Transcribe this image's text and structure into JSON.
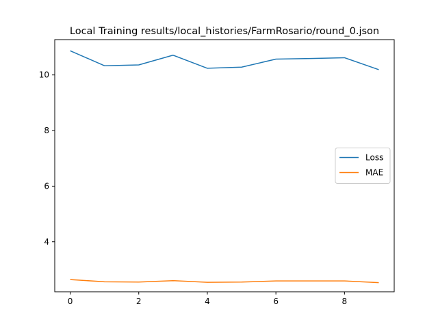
{
  "chart_data": {
    "type": "line",
    "title": "Local Training results/local_histories/FarmRosario/round_0.json",
    "xlabel": "",
    "ylabel": "",
    "x": [
      0,
      1,
      2,
      3,
      4,
      5,
      6,
      7,
      8,
      9
    ],
    "xlim": [
      -0.45,
      9.45
    ],
    "ylim": [
      2.2,
      11.27
    ],
    "xticks": [
      0,
      2,
      4,
      6,
      8
    ],
    "yticks": [
      4,
      6,
      8,
      10
    ],
    "grid": false,
    "legend_position": "center-right",
    "series": [
      {
        "name": "Loss",
        "color": "#1f77b4",
        "values": [
          10.87,
          10.33,
          10.36,
          10.71,
          10.24,
          10.28,
          10.57,
          10.59,
          10.62,
          10.19
        ]
      },
      {
        "name": "MAE",
        "color": "#ff7f0e",
        "values": [
          2.64,
          2.56,
          2.55,
          2.6,
          2.54,
          2.55,
          2.59,
          2.59,
          2.59,
          2.53
        ]
      }
    ]
  }
}
